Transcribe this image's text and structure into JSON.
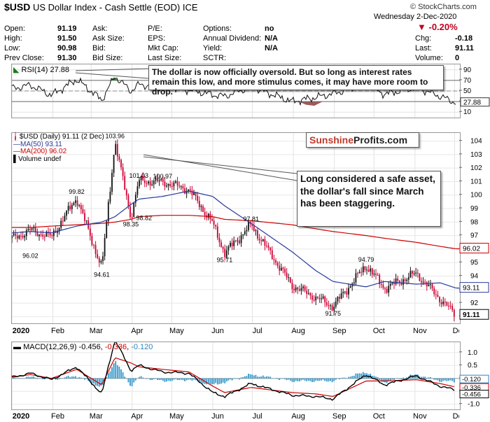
{
  "header": {
    "symbol": "$USD",
    "name": "US Dollar Index - Cash Settle (EOD)",
    "exchange": "ICE",
    "watermark": "© StockCharts.com",
    "date": "Wednesday  2-Dec-2020",
    "change_pct": "-0.20%"
  },
  "quote": {
    "col1": [
      [
        "Open:",
        "91.19"
      ],
      [
        "High:",
        "91.50"
      ],
      [
        "Low:",
        "90.98"
      ],
      [
        "Prev Close:",
        "91.30"
      ]
    ],
    "col2": [
      "Ask:",
      "Ask Size:",
      "Bid:",
      "Bid Size:"
    ],
    "col3": [
      "P/E:",
      "EPS:",
      "Mkt Cap:",
      "Last Size:"
    ],
    "col4": [
      [
        "Options:",
        "no"
      ],
      [
        "Annual Dividend:",
        "N/A"
      ],
      [
        "Yield:",
        "N/A"
      ],
      [
        "SCTR:",
        ""
      ]
    ],
    "col5": [
      [
        "Chg:",
        "-0.18"
      ],
      [
        "Last:",
        "91.11"
      ],
      [
        "Volume:",
        "0"
      ]
    ]
  },
  "colors": {
    "price_up": "#111111",
    "price_down": "#cc0033",
    "ma50": "#2a3a9a",
    "ma200": "#cc0000",
    "macd": "#000000",
    "signal": "#cc0000",
    "hist": "#3399cc"
  },
  "rsi_panel": {
    "legend": "RSI(14) 27.88",
    "ticks": [
      "90",
      "70",
      "50",
      "30",
      "10"
    ],
    "current": "27.88"
  },
  "price_panel": {
    "legend_main": "$USD (Daily) 91.11 (2 Dec)",
    "legend_ma50": "MA(50) 93.11",
    "legend_ma200": "MA(200) 96.02",
    "legend_vol": "Volume undef",
    "ticks": [
      "104",
      "103",
      "102",
      "101",
      "100",
      "99",
      "98",
      "97",
      "96",
      "95",
      "94",
      "93",
      "92",
      "91"
    ],
    "ma200_tag": "96.02",
    "ma50_tag": "93.11",
    "last_tag": "91.11",
    "annotations": [
      "103.96",
      "101.03",
      "100.97",
      "99.82",
      "98.82",
      "98.35",
      "97.81",
      "96.02",
      "95.71",
      "94.79",
      "94.61",
      "91.75"
    ]
  },
  "macd_panel": {
    "legend_prefix": "MACD(12,26,9)",
    "macd_value": "-0.456",
    "signal_value": "-0.336",
    "hist_value": "-0.120",
    "ticks": [
      "1.0",
      "0.5",
      "0.0",
      "-0.5",
      "-1.0"
    ],
    "tags": [
      "-0.120",
      "-0.336",
      "-0.456"
    ]
  },
  "x_axis": {
    "months": [
      "2020",
      "Feb",
      "Mar",
      "Apr",
      "May",
      "Jun",
      "Jul",
      "Aug",
      "Sep",
      "Oct",
      "Nov",
      "Dec"
    ]
  },
  "callouts": {
    "rsi_note": "The dollar is now officially oversold. But so long as interest rates remain this low, and more stimulus comes, it may have more room to drop.",
    "price_note": "Long considered a safe asset, the dollar's fall since March has been staggering.",
    "brand_part1": "Sunshine",
    "brand_part2": "Profits.com"
  },
  "chart_data": {
    "type": "line",
    "title": "$USD US Dollar Index - Cash Settle (EOD)",
    "xlabel": "",
    "ylabel": "",
    "ylim": [
      90.5,
      104.6
    ],
    "grid": true,
    "legend": "top-left",
    "x": [
      "2020-01-02",
      "2020-01-15",
      "2020-01-31",
      "2020-02-19",
      "2020-03-09",
      "2020-03-19",
      "2020-03-31",
      "2020-04-06",
      "2020-04-24",
      "2020-05-14",
      "2020-06-01",
      "2020-06-10",
      "2020-06-30",
      "2020-07-31",
      "2020-08-18",
      "2020-08-31",
      "2020-09-25",
      "2020-10-09",
      "2020-11-02",
      "2020-11-20",
      "2020-12-02"
    ],
    "series": [
      {
        "name": "$USD (Daily)",
        "values": [
          96.8,
          97.4,
          96.9,
          99.8,
          94.6,
          103.96,
          98.35,
          101.03,
          100.97,
          100.4,
          97.9,
          95.7,
          97.8,
          93.3,
          92.4,
          91.75,
          94.79,
          93.1,
          94.2,
          92.3,
          91.11
        ]
      },
      {
        "name": "MA(50)",
        "values": [
          97.2,
          97.3,
          97.2,
          97.7,
          98.0,
          98.4,
          99.3,
          99.7,
          99.9,
          100.3,
          99.9,
          99.2,
          97.9,
          95.8,
          94.4,
          93.6,
          93.2,
          93.6,
          93.4,
          93.5,
          93.11
        ]
      },
      {
        "name": "MA(200)",
        "values": [
          97.6,
          97.6,
          97.7,
          97.8,
          97.9,
          98.0,
          98.2,
          98.4,
          98.5,
          98.5,
          98.4,
          98.2,
          98.1,
          97.8,
          97.5,
          97.3,
          97.0,
          96.8,
          96.5,
          96.2,
          96.02
        ]
      }
    ],
    "rsi": {
      "name": "RSI(14)",
      "range": [
        0,
        100
      ],
      "values": [
        55,
        61,
        42,
        72,
        33,
        78,
        50,
        62,
        58,
        52,
        43,
        40,
        58,
        30,
        38,
        45,
        62,
        44,
        57,
        40,
        27.88
      ]
    },
    "macd": {
      "name": "MACD(12,26,9)",
      "range": [
        -1.2,
        1.4
      ],
      "macd": [
        0.05,
        0.2,
        -0.05,
        0.45,
        -0.6,
        1.5,
        0.3,
        0.5,
        0.25,
        0.2,
        -0.55,
        -0.7,
        -0.2,
        -0.65,
        -0.7,
        -0.8,
        0.15,
        -0.25,
        0.1,
        -0.3,
        -0.456
      ],
      "signal": [
        0.05,
        0.15,
        0.0,
        0.35,
        -0.25,
        0.8,
        0.6,
        0.45,
        0.35,
        0.25,
        -0.3,
        -0.55,
        -0.35,
        -0.55,
        -0.6,
        -0.7,
        -0.1,
        -0.1,
        -0.05,
        -0.2,
        -0.336
      ]
    }
  }
}
